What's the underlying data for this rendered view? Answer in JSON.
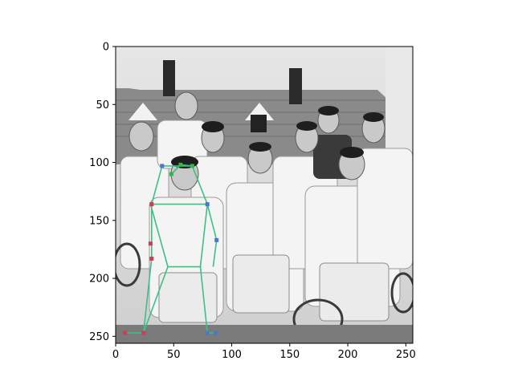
{
  "chart_data": {
    "type": "scatter",
    "title": "",
    "xlabel": "",
    "ylabel": "",
    "xlim": [
      0,
      256
    ],
    "ylim": [
      256,
      0
    ],
    "y_inverted": true,
    "grid": false,
    "legend": "none",
    "xticks": [
      0,
      50,
      100,
      150,
      200,
      250
    ],
    "yticks": [
      0,
      50,
      100,
      150,
      200,
      250
    ],
    "background": "grayscale photograph of a group of young men in white tennis clothes holding rackets, in front of a house",
    "colors": {
      "skeleton": "#3dbf85",
      "joint_left": "#4a78c8",
      "joint_right": "#d23a58",
      "joint_face": "#2fb84a"
    },
    "keypoints": [
      {
        "x": 8,
        "y": 247,
        "side": "right"
      },
      {
        "x": 24,
        "y": 247,
        "side": "right"
      },
      {
        "x": 31,
        "y": 183,
        "side": "right"
      },
      {
        "x": 30,
        "y": 170,
        "side": "right"
      },
      {
        "x": 31,
        "y": 136,
        "side": "right"
      },
      {
        "x": 40,
        "y": 103,
        "side": "left"
      },
      {
        "x": 48,
        "y": 110,
        "side": "face"
      },
      {
        "x": 56,
        "y": 102,
        "side": "face"
      },
      {
        "x": 66,
        "y": 103,
        "side": "face"
      },
      {
        "x": 79,
        "y": 136,
        "side": "left"
      },
      {
        "x": 87,
        "y": 167,
        "side": "left"
      },
      {
        "x": 79,
        "y": 247,
        "side": "left"
      },
      {
        "x": 86,
        "y": 247,
        "side": "left"
      }
    ],
    "skeleton_lines": [
      [
        [
          8,
          247
        ],
        [
          24,
          247
        ],
        [
          45,
          190
        ],
        [
          73,
          190
        ],
        [
          79,
          247
        ],
        [
          86,
          247
        ]
      ],
      [
        [
          24,
          247
        ],
        [
          31,
          183
        ],
        [
          31,
          136
        ],
        [
          79,
          136
        ],
        [
          87,
          167
        ],
        [
          84,
          190
        ]
      ],
      [
        [
          31,
          136
        ],
        [
          40,
          103
        ],
        [
          66,
          103
        ],
        [
          79,
          136
        ]
      ],
      [
        [
          45,
          190
        ],
        [
          30,
          136
        ]
      ],
      [
        [
          73,
          190
        ],
        [
          79,
          136
        ]
      ],
      [
        [
          48,
          110
        ],
        [
          56,
          102
        ],
        [
          66,
          103
        ]
      ]
    ]
  }
}
